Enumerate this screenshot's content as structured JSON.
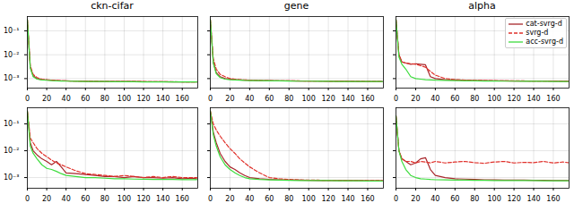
{
  "chart_data": [
    {
      "type": "line",
      "title": "ckn-cifar",
      "log": "y",
      "grid": true,
      "x": [
        0,
        3,
        6,
        10,
        15,
        20,
        25,
        30,
        35,
        40,
        50,
        60,
        70,
        80,
        90,
        100,
        110,
        120,
        130,
        140,
        150,
        160,
        170,
        175
      ],
      "xlim": [
        0,
        176
      ],
      "xticks": [
        0,
        20,
        40,
        60,
        80,
        100,
        120,
        140,
        160
      ],
      "ylim": [
        0.0004,
        0.4
      ],
      "yticks": [
        {
          "value": 0.1,
          "label": "10⁻¹"
        },
        {
          "value": 0.01,
          "label": "10⁻²"
        },
        {
          "value": 0.001,
          "label": "10⁻³"
        }
      ],
      "series": [
        {
          "name": "cat-svrg-d",
          "color": "#a8262b",
          "line_style": "solid",
          "values": [
            0.3,
            0.003,
            0.0013,
            0.001,
            0.0009,
            0.00088,
            0.00085,
            0.00082,
            0.0008,
            0.0008,
            0.00078,
            0.00077,
            0.00076,
            0.00076,
            0.00075,
            0.00075,
            0.00075,
            0.00074,
            0.00074,
            0.00074,
            0.00073,
            0.00073,
            0.00073,
            0.00073
          ]
        },
        {
          "name": "svrg-d",
          "color": "#e0302a",
          "line_style": "dashed",
          "values": [
            0.3,
            0.0035,
            0.0015,
            0.0011,
            0.00095,
            0.0009,
            0.00087,
            0.00084,
            0.00082,
            0.0008,
            0.00079,
            0.00078,
            0.00077,
            0.00076,
            0.00076,
            0.00075,
            0.00075,
            0.00075,
            0.00074,
            0.00074,
            0.00074,
            0.00073,
            0.00073,
            0.00073
          ]
        },
        {
          "name": "acc-svrg-d",
          "color": "#3ddc3d",
          "line_style": "solid",
          "values": [
            0.3,
            0.0028,
            0.0012,
            0.00095,
            0.00088,
            0.00085,
            0.00082,
            0.0008,
            0.00079,
            0.00078,
            0.00077,
            0.00076,
            0.00075,
            0.00075,
            0.00074,
            0.00074,
            0.00074,
            0.00073,
            0.00073,
            0.00073,
            0.00072,
            0.00072,
            0.00072,
            0.00072
          ]
        }
      ]
    },
    {
      "type": "line",
      "title": "gene",
      "log": "y",
      "grid": true,
      "tick_labels": "x",
      "x": [
        0,
        3,
        6,
        10,
        15,
        20,
        25,
        30,
        35,
        40,
        50,
        60,
        70,
        80,
        90,
        100,
        110,
        120,
        130,
        140,
        150,
        160,
        170,
        175
      ],
      "xlim": [
        0,
        176
      ],
      "xticks": [
        0,
        20,
        40,
        60,
        80,
        100,
        120,
        140,
        160
      ],
      "ylim": [
        0.0004,
        0.4
      ],
      "yticks": [
        0.1,
        0.01,
        0.001
      ],
      "series": [
        {
          "name": "cat-svrg-d",
          "color": "#a8262b",
          "line_style": "solid",
          "values": [
            0.3,
            0.005,
            0.0018,
            0.0012,
            0.001,
            0.00095,
            0.0009,
            0.00088,
            0.00086,
            0.00085,
            0.00083,
            0.00082,
            0.0008,
            0.0008,
            0.00079,
            0.00078,
            0.00078,
            0.00077,
            0.00077,
            0.00077,
            0.00076,
            0.00076,
            0.00076,
            0.00076
          ]
        },
        {
          "name": "svrg-d",
          "color": "#e0302a",
          "line_style": "dashed",
          "values": [
            0.3,
            0.007,
            0.0025,
            0.0015,
            0.0012,
            0.001,
            0.00095,
            0.0009,
            0.00088,
            0.00086,
            0.00084,
            0.00082,
            0.00081,
            0.0008,
            0.0008,
            0.00079,
            0.00078,
            0.00078,
            0.00077,
            0.00077,
            0.00077,
            0.00076,
            0.00076,
            0.00076
          ]
        },
        {
          "name": "acc-svrg-d",
          "color": "#3ddc3d",
          "line_style": "solid",
          "values": [
            0.3,
            0.0045,
            0.0016,
            0.0011,
            0.00095,
            0.0009,
            0.00088,
            0.00086,
            0.00084,
            0.00083,
            0.00082,
            0.0008,
            0.0008,
            0.00079,
            0.00078,
            0.00078,
            0.00077,
            0.00077,
            0.00076,
            0.00076,
            0.00076,
            0.00075,
            0.00075,
            0.00075
          ]
        }
      ]
    },
    {
      "type": "line",
      "title": "alpha",
      "log": "y",
      "grid": true,
      "tick_labels": "x",
      "legend": "upper right",
      "x": [
        0,
        3,
        6,
        10,
        15,
        20,
        25,
        30,
        35,
        40,
        50,
        60,
        70,
        80,
        90,
        100,
        110,
        120,
        130,
        140,
        150,
        160,
        170,
        175
      ],
      "xlim": [
        0,
        176
      ],
      "xticks": [
        0,
        20,
        40,
        60,
        80,
        100,
        120,
        140,
        160
      ],
      "ylim": [
        0.0004,
        0.4
      ],
      "yticks": [
        0.1,
        0.01,
        0.001
      ],
      "series": [
        {
          "name": "cat-svrg-d",
          "color": "#a8262b",
          "line_style": "solid",
          "values": [
            0.3,
            0.01,
            0.005,
            0.0045,
            0.004,
            0.0042,
            0.004,
            0.0038,
            0.0012,
            0.001,
            0.0009,
            0.00088,
            0.00085,
            0.00083,
            0.00082,
            0.0008,
            0.0008,
            0.00079,
            0.00079,
            0.00078,
            0.00078,
            0.00078,
            0.00077,
            0.00077
          ]
        },
        {
          "name": "svrg-d",
          "color": "#e0302a",
          "line_style": "dashed",
          "values": [
            0.3,
            0.01,
            0.005,
            0.0045,
            0.0042,
            0.004,
            0.0035,
            0.003,
            0.002,
            0.0014,
            0.001,
            0.0009,
            0.00087,
            0.00085,
            0.00083,
            0.00082,
            0.00081,
            0.0008,
            0.0008,
            0.00079,
            0.00079,
            0.00078,
            0.00078,
            0.00078
          ]
        },
        {
          "name": "acc-svrg-d",
          "color": "#3ddc3d",
          "line_style": "solid",
          "values": [
            0.3,
            0.008,
            0.004,
            0.0025,
            0.0012,
            0.001,
            0.00095,
            0.0009,
            0.00088,
            0.00086,
            0.00084,
            0.00082,
            0.00081,
            0.0008,
            0.00079,
            0.00079,
            0.00078,
            0.00078,
            0.00077,
            0.00077,
            0.00077,
            0.00076,
            0.00076,
            0.00076
          ]
        }
      ]
    },
    {
      "type": "line",
      "log": "y",
      "grid": true,
      "x": [
        0,
        3,
        6,
        10,
        15,
        20,
        25,
        30,
        35,
        40,
        50,
        60,
        70,
        80,
        90,
        100,
        110,
        120,
        130,
        140,
        150,
        160,
        170,
        175
      ],
      "xlim": [
        0,
        176
      ],
      "xticks": [
        0,
        20,
        40,
        60,
        80,
        100,
        120,
        140,
        160
      ],
      "ylim": [
        0.0004,
        0.4
      ],
      "yticks": [
        {
          "value": 0.1,
          "label": "10⁻¹"
        },
        {
          "value": 0.01,
          "label": "10⁻²"
        },
        {
          "value": 0.001,
          "label": "10⁻³"
        }
      ],
      "series": [
        {
          "name": "cat-svrg-d",
          "color": "#a8262b",
          "line_style": "solid",
          "values": [
            0.3,
            0.02,
            0.01,
            0.007,
            0.005,
            0.004,
            0.003,
            0.004,
            0.0025,
            0.0015,
            0.0014,
            0.0013,
            0.0012,
            0.0011,
            0.0011,
            0.001,
            0.0011,
            0.001,
            0.001,
            0.00095,
            0.001,
            0.0009,
            0.00095,
            0.0009
          ]
        },
        {
          "name": "svrg-d",
          "color": "#e0302a",
          "line_style": "dashed",
          "values": [
            0.3,
            0.03,
            0.02,
            0.012,
            0.008,
            0.006,
            0.0045,
            0.0035,
            0.003,
            0.0025,
            0.0018,
            0.0014,
            0.0013,
            0.0012,
            0.0011,
            0.0012,
            0.0011,
            0.001,
            0.0011,
            0.001,
            0.0011,
            0.001,
            0.001,
            0.001
          ]
        },
        {
          "name": "acc-svrg-d",
          "color": "#3ddc3d",
          "line_style": "solid",
          "values": [
            0.3,
            0.015,
            0.008,
            0.005,
            0.003,
            0.0022,
            0.002,
            0.0017,
            0.0014,
            0.0012,
            0.0011,
            0.001,
            0.001,
            0.00095,
            0.0009,
            0.0009,
            0.00088,
            0.00087,
            0.00086,
            0.00085,
            0.00085,
            0.00084,
            0.00084,
            0.00084
          ]
        }
      ]
    },
    {
      "type": "line",
      "log": "y",
      "grid": true,
      "tick_labels": "x",
      "x": [
        0,
        3,
        6,
        10,
        15,
        20,
        25,
        30,
        35,
        40,
        50,
        60,
        70,
        80,
        90,
        100,
        110,
        120,
        130,
        140,
        150,
        160,
        170,
        175
      ],
      "xlim": [
        0,
        176
      ],
      "xticks": [
        0,
        20,
        40,
        60,
        80,
        100,
        120,
        140,
        160
      ],
      "ylim": [
        0.0004,
        0.4
      ],
      "yticks": [
        0.1,
        0.01,
        0.001
      ],
      "series": [
        {
          "name": "cat-svrg-d",
          "color": "#a8262b",
          "line_style": "solid",
          "values": [
            0.3,
            0.05,
            0.02,
            0.008,
            0.004,
            0.0025,
            0.002,
            0.0015,
            0.0012,
            0.001,
            0.0009,
            0.00085,
            0.00083,
            0.0008,
            0.0008,
            0.00079,
            0.00078,
            0.00078,
            0.00077,
            0.00077,
            0.00077,
            0.00076,
            0.00076,
            0.00076
          ]
        },
        {
          "name": "svrg-d",
          "color": "#e0302a",
          "line_style": "dashed",
          "values": [
            0.3,
            0.1,
            0.06,
            0.035,
            0.02,
            0.012,
            0.008,
            0.005,
            0.0035,
            0.0025,
            0.0015,
            0.001,
            0.0009,
            0.00085,
            0.00082,
            0.0008,
            0.0008,
            0.00079,
            0.00078,
            0.00078,
            0.00077,
            0.00077,
            0.00077,
            0.00077
          ]
        },
        {
          "name": "acc-svrg-d",
          "color": "#3ddc3d",
          "line_style": "solid",
          "values": [
            0.3,
            0.04,
            0.015,
            0.006,
            0.003,
            0.002,
            0.0015,
            0.0012,
            0.001,
            0.0009,
            0.00085,
            0.00082,
            0.0008,
            0.00079,
            0.00078,
            0.00078,
            0.00077,
            0.00077,
            0.00076,
            0.00076,
            0.00076,
            0.00075,
            0.00075,
            0.00075
          ]
        }
      ]
    },
    {
      "type": "line",
      "log": "y",
      "grid": true,
      "tick_labels": "x",
      "x": [
        0,
        3,
        6,
        10,
        15,
        20,
        25,
        30,
        35,
        40,
        50,
        60,
        70,
        80,
        90,
        100,
        110,
        120,
        130,
        140,
        150,
        160,
        170,
        175
      ],
      "xlim": [
        0,
        176
      ],
      "xticks": [
        0,
        20,
        40,
        60,
        80,
        100,
        120,
        140,
        160
      ],
      "ylim": [
        0.0004,
        0.4
      ],
      "yticks": [
        0.1,
        0.01,
        0.001
      ],
      "series": [
        {
          "name": "cat-svrg-d",
          "color": "#a8262b",
          "line_style": "solid",
          "values": [
            0.2,
            0.01,
            0.005,
            0.004,
            0.003,
            0.0035,
            0.005,
            0.0055,
            0.002,
            0.0012,
            0.001,
            0.0009,
            0.00088,
            0.00085,
            0.00083,
            0.00082,
            0.00081,
            0.0008,
            0.0008,
            0.00079,
            0.00079,
            0.00078,
            0.00078,
            0.00078
          ]
        },
        {
          "name": "svrg-d",
          "color": "#e0302a",
          "line_style": "dashed",
          "values": [
            0.2,
            0.01,
            0.005,
            0.004,
            0.004,
            0.0035,
            0.004,
            0.0038,
            0.0035,
            0.004,
            0.0035,
            0.0038,
            0.004,
            0.0036,
            0.0034,
            0.0038,
            0.004,
            0.0035,
            0.0037,
            0.0036,
            0.004,
            0.0035,
            0.0038,
            0.0036
          ]
        },
        {
          "name": "acc-svrg-d",
          "color": "#3ddc3d",
          "line_style": "solid",
          "values": [
            0.2,
            0.01,
            0.004,
            0.002,
            0.0012,
            0.001,
            0.0009,
            0.00088,
            0.00085,
            0.00083,
            0.00082,
            0.0008,
            0.0008,
            0.00079,
            0.00079,
            0.00078,
            0.00078,
            0.00077,
            0.00077,
            0.00077,
            0.00076,
            0.00076,
            0.00076,
            0.00076
          ]
        }
      ]
    }
  ]
}
